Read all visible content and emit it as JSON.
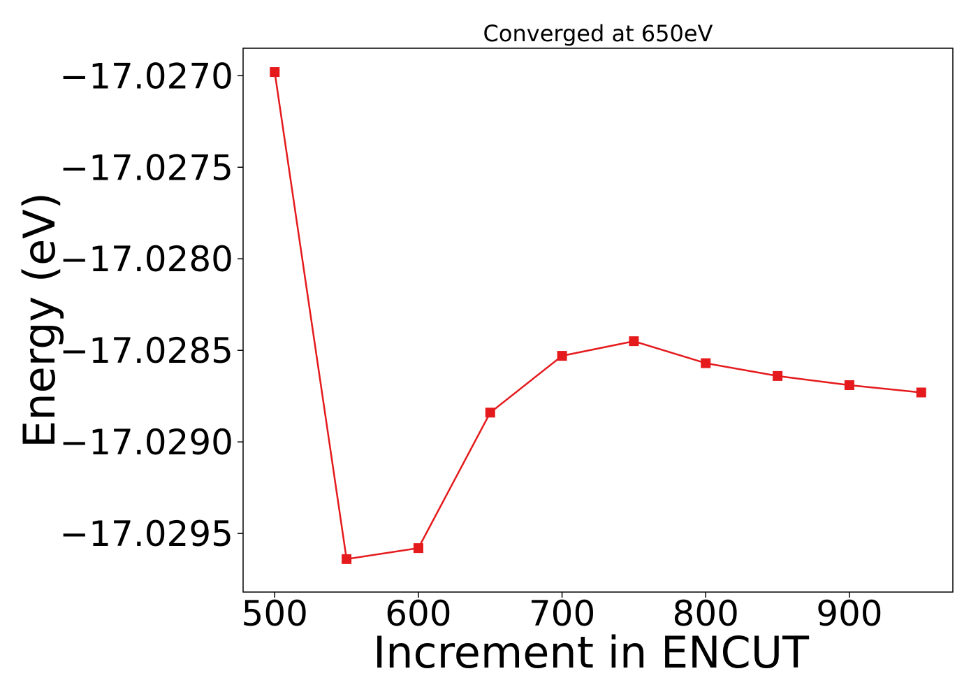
{
  "chart_data": {
    "type": "line",
    "title": "Converged at 650eV",
    "xlabel": "Increment in ENCUT",
    "ylabel": "Energy (eV)",
    "xlim": [
      478,
      972
    ],
    "ylim": [
      -17.02982,
      -17.02685
    ],
    "xticks": [
      500,
      600,
      700,
      800,
      900
    ],
    "yticks": [
      -17.027,
      -17.0275,
      -17.028,
      -17.0285,
      -17.029,
      -17.0295
    ],
    "xtick_labels": [
      "500",
      "600",
      "700",
      "800",
      "900"
    ],
    "ytick_labels": [
      "−17.0270",
      "−17.0275",
      "−17.0280",
      "−17.0285",
      "−17.0290",
      "−17.0295"
    ],
    "grid": false,
    "series": [
      {
        "color": "#e41a1c",
        "marker": "square",
        "x": [
          500,
          550,
          600,
          650,
          700,
          750,
          800,
          850,
          900,
          950
        ],
        "y": [
          -17.02698,
          -17.02964,
          -17.02958,
          -17.02884,
          -17.02853,
          -17.02845,
          -17.02857,
          -17.02864,
          -17.02869,
          -17.02873
        ]
      }
    ]
  }
}
